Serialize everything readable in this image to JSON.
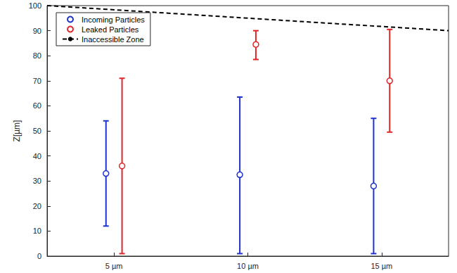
{
  "chart_data": {
    "type": "scatter",
    "ylabel": "Z[µm]",
    "xlim": [
      0.5,
      3.5
    ],
    "xticks": [
      {
        "value": 1,
        "label": "5 µm"
      },
      {
        "value": 2,
        "label": "10 µm"
      },
      {
        "value": 3,
        "label": "15 µm"
      }
    ],
    "ylim": [
      0,
      100
    ],
    "yticks": [
      0,
      10,
      20,
      30,
      40,
      50,
      60,
      70,
      80,
      90,
      100
    ],
    "grid": false,
    "legend": "upper left",
    "series": [
      {
        "name": "Incoming Particles",
        "color": "#1f33cc",
        "marker": "circle",
        "x": [
          0.94,
          1.94,
          2.94
        ],
        "values": [
          33,
          32.5,
          28
        ],
        "lower": [
          12,
          1,
          1
        ],
        "upper": [
          54,
          63.5,
          55
        ]
      },
      {
        "name": "Leaked Particles",
        "color": "#e0262a",
        "marker": "circle",
        "x": [
          1.06,
          2.06,
          3.06
        ],
        "values": [
          36,
          84.5,
          70
        ],
        "lower": [
          1,
          78.5,
          49.5
        ],
        "upper": [
          71,
          90,
          90.5
        ]
      },
      {
        "name": "Inaccessible Zone",
        "type": "line",
        "color": "#000000",
        "line_style": "dashed",
        "x": [
          0.5,
          3.5
        ],
        "values": [
          100,
          90
        ]
      }
    ]
  }
}
